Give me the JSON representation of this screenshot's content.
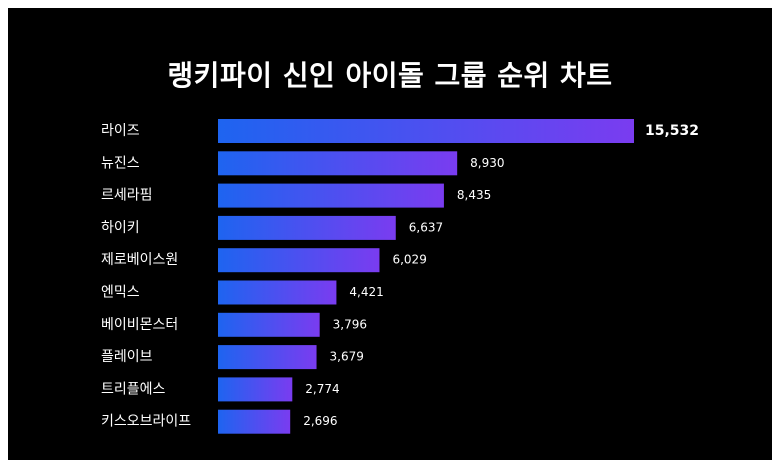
{
  "chart_data": {
    "type": "bar",
    "orientation": "horizontal",
    "title": "랭키파이 신인 아이돌 그룹 순위 차트",
    "categories": [
      "라이즈",
      "뉴진스",
      "르세라핌",
      "하이키",
      "제로베이스원",
      "엔믹스",
      "베이비몬스터",
      "플레이브",
      "트리플에스",
      "키스오브라이프"
    ],
    "values": [
      15532,
      8930,
      8435,
      6637,
      6029,
      4421,
      3796,
      3679,
      2774,
      2696
    ],
    "value_labels": [
      "15,532",
      "8,930",
      "8,435",
      "6,637",
      "6,029",
      "4,421",
      "3,796",
      "3,679",
      "2,774",
      "2,696"
    ],
    "xlim": [
      0,
      15532
    ],
    "grid": false,
    "legend": "none",
    "colors": {
      "background": "#000000",
      "bar_start": "#1e64f0",
      "bar_end": "#7a3cf0",
      "text": "#ffffff"
    }
  }
}
